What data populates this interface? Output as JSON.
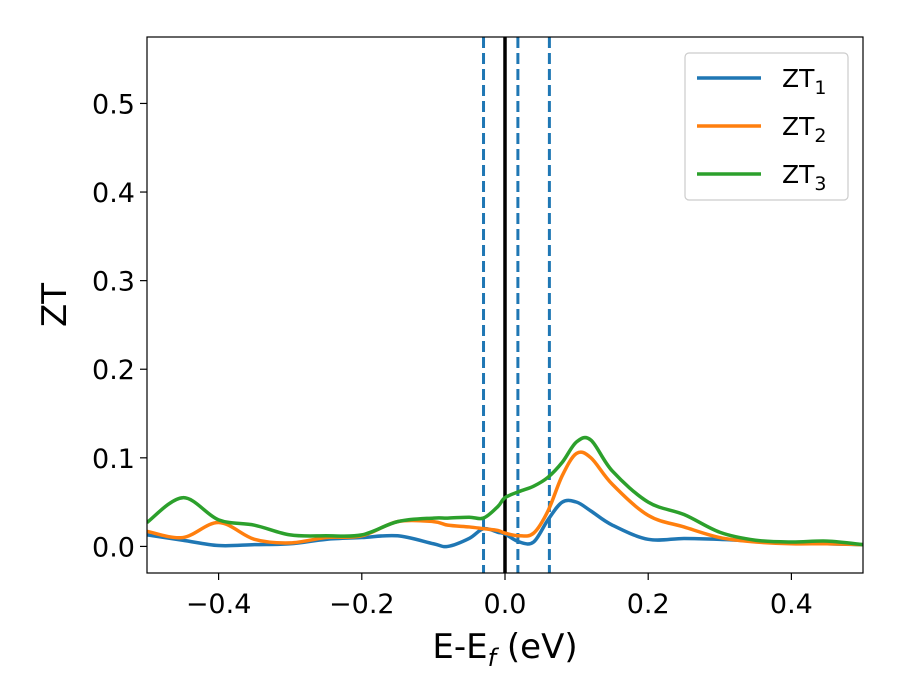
{
  "chart_data": {
    "type": "line",
    "title": "",
    "xlabel_main": "E-E",
    "xlabel_sub": "f",
    "xlabel_unit": " (eV)",
    "ylabel": "ZT",
    "xlim": [
      -0.5,
      0.5
    ],
    "ylim": [
      -0.03,
      0.575
    ],
    "xticks": [
      -0.4,
      -0.2,
      0.0,
      0.2,
      0.4
    ],
    "xtick_labels": [
      "−0.4",
      "−0.2",
      "0.0",
      "0.2",
      "0.4"
    ],
    "yticks": [
      0.0,
      0.1,
      0.2,
      0.3,
      0.4,
      0.5
    ],
    "ytick_labels": [
      "0.0",
      "0.1",
      "0.2",
      "0.3",
      "0.4",
      "0.5"
    ],
    "grid": false,
    "legend_position": "top-right",
    "reference_lines": [
      {
        "x": 0.0,
        "style": "solid",
        "color": "#000000"
      },
      {
        "x": -0.03,
        "style": "dashed",
        "color": "#1f77b4"
      },
      {
        "x": 0.018,
        "style": "dashed",
        "color": "#1f77b4"
      },
      {
        "x": 0.062,
        "style": "dashed",
        "color": "#1f77b4"
      }
    ],
    "x": [
      -0.5,
      -0.45,
      -0.4,
      -0.35,
      -0.3,
      -0.25,
      -0.2,
      -0.15,
      -0.1,
      -0.08,
      -0.05,
      -0.03,
      -0.01,
      0.0,
      0.02,
      0.04,
      0.06,
      0.08,
      0.1,
      0.12,
      0.15,
      0.2,
      0.25,
      0.3,
      0.35,
      0.4,
      0.45,
      0.5
    ],
    "series": [
      {
        "name": "ZT",
        "sub": "1",
        "color": "#1f77b4",
        "values": [
          0.013,
          0.007,
          0.001,
          0.002,
          0.003,
          0.008,
          0.01,
          0.012,
          0.003,
          0.0,
          0.009,
          0.02,
          0.016,
          0.014,
          0.005,
          0.005,
          0.03,
          0.05,
          0.05,
          0.04,
          0.024,
          0.008,
          0.009,
          0.008,
          0.006,
          0.004,
          0.003,
          0.002
        ]
      },
      {
        "name": "ZT",
        "sub": "2",
        "color": "#ff7f0e",
        "values": [
          0.017,
          0.01,
          0.027,
          0.008,
          0.004,
          0.01,
          0.012,
          0.028,
          0.028,
          0.024,
          0.022,
          0.02,
          0.018,
          0.015,
          0.012,
          0.015,
          0.04,
          0.08,
          0.105,
          0.1,
          0.07,
          0.035,
          0.022,
          0.01,
          0.005,
          0.003,
          0.003,
          0.002
        ]
      },
      {
        "name": "ZT",
        "sub": "3",
        "color": "#2ca02c",
        "values": [
          0.027,
          0.055,
          0.03,
          0.024,
          0.013,
          0.012,
          0.013,
          0.028,
          0.032,
          0.032,
          0.033,
          0.032,
          0.045,
          0.055,
          0.062,
          0.068,
          0.078,
          0.095,
          0.118,
          0.12,
          0.085,
          0.05,
          0.036,
          0.016,
          0.007,
          0.005,
          0.006,
          0.002
        ]
      }
    ]
  }
}
